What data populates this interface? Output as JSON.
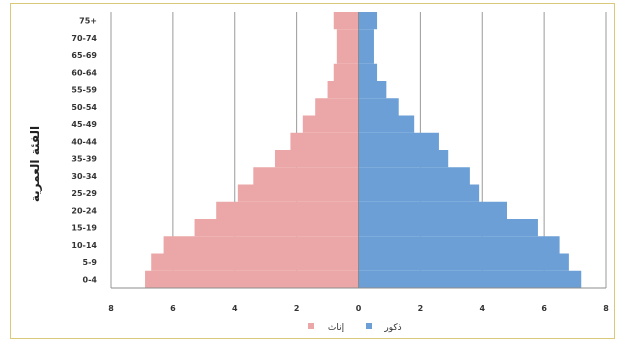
{
  "chart_data": {
    "type": "bar",
    "orientation": "horizontal",
    "subtype": "population-pyramid",
    "ylabel": "الفئة العمرية",
    "xlim": [
      -8,
      8
    ],
    "xticks": [
      -8,
      -6,
      -4,
      -2,
      0,
      2,
      4,
      6,
      8
    ],
    "xtick_labels": [
      "8",
      "6",
      "4",
      "2",
      "0",
      "2",
      "4",
      "6",
      "8"
    ],
    "grid": "vertical",
    "legend_position": "bottom",
    "categories": [
      "0-4",
      "5-9",
      "10-14",
      "15-19",
      "20-24",
      "25-29",
      "30-34",
      "35-39",
      "40-44",
      "45-49",
      "50-54",
      "55-59",
      "60-64",
      "65-69",
      "70-74",
      "75+"
    ],
    "series": [
      {
        "name": "إناث",
        "color": "#eba7a7",
        "side": "left",
        "values": [
          6.9,
          6.7,
          6.3,
          5.3,
          4.6,
          3.9,
          3.4,
          2.7,
          2.2,
          1.8,
          1.4,
          1.0,
          0.8,
          0.7,
          0.7,
          0.8
        ]
      },
      {
        "name": "ذكور",
        "color": "#6b9fd6",
        "side": "right",
        "values": [
          7.2,
          6.8,
          6.5,
          5.8,
          4.8,
          3.9,
          3.6,
          2.9,
          2.6,
          1.8,
          1.3,
          0.9,
          0.6,
          0.5,
          0.5,
          0.6
        ]
      }
    ]
  }
}
